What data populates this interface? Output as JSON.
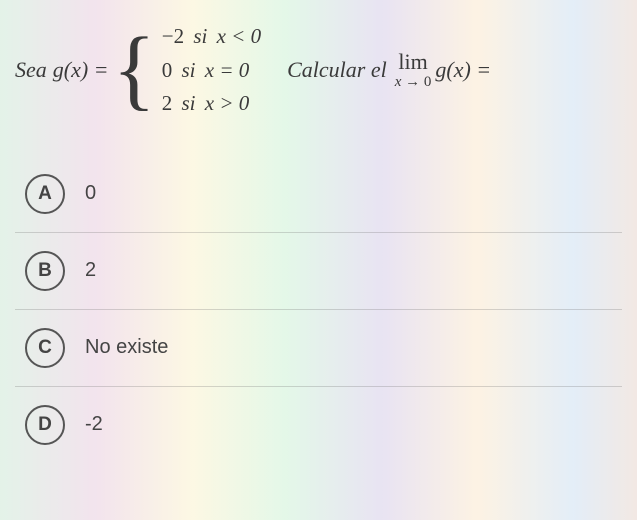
{
  "question": {
    "sea_text": "Sea",
    "func_left": "g(x) =",
    "cases": [
      {
        "value": "−2",
        "si": "si",
        "cond": "x < 0"
      },
      {
        "value": "0",
        "si": "si",
        "cond": "x = 0"
      },
      {
        "value": "2",
        "si": "si",
        "cond": "x > 0"
      }
    ],
    "calcular_text": "Calcular el",
    "lim_top": "lim",
    "lim_bottom": "x → 0",
    "lim_right": "g(x) ="
  },
  "options": [
    {
      "letter": "A",
      "text": "0"
    },
    {
      "letter": "B",
      "text": "2"
    },
    {
      "letter": "C",
      "text": "No existe"
    },
    {
      "letter": "D",
      "text": "-2"
    }
  ],
  "colors": {
    "text": "#3a3a3a",
    "circle_border": "#555555",
    "divider": "rgba(100,100,100,0.25)"
  }
}
